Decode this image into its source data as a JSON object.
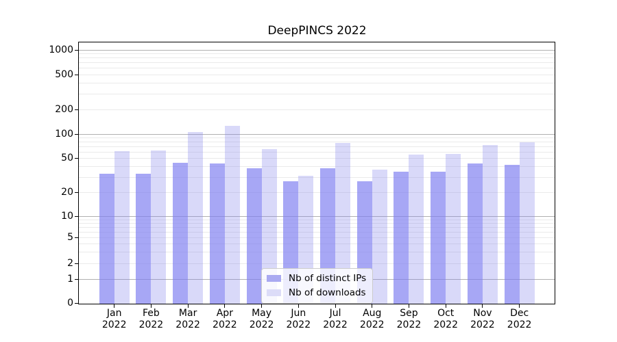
{
  "figure": {
    "background_color": "#ffffff",
    "axis_color": "#000000"
  },
  "chart_data": {
    "type": "bar",
    "title": "DeepPINCS 2022",
    "x_tick_months": [
      "Jan",
      "Feb",
      "Mar",
      "Apr",
      "May",
      "Jun",
      "Jul",
      "Aug",
      "Sep",
      "Oct",
      "Nov",
      "Dec"
    ],
    "x_tick_year": "2022",
    "series": [
      {
        "name": "Nb of distinct IPs",
        "values": [
          33,
          33,
          44,
          43,
          38,
          27,
          38,
          27,
          35,
          35,
          43,
          42
        ],
        "bar_color": "rgba(125,125,240,0.68)",
        "legend_swatch_color": "#a9a9f1"
      },
      {
        "name": "Nb of downloads",
        "values": [
          61,
          63,
          107,
          127,
          65,
          31,
          78,
          37,
          56,
          57,
          73,
          80
        ],
        "bar_color": "rgba(130,130,235,0.30)",
        "legend_swatch_color": "#dcdcf8"
      }
    ],
    "y_axis": {
      "scale": "symlog",
      "tick_values": [
        0,
        1,
        2,
        5,
        10,
        20,
        50,
        100,
        200,
        500,
        1000
      ],
      "tick_labels": [
        "0",
        "1",
        "2",
        "5",
        "10",
        "20",
        "50",
        "100",
        "200",
        "500",
        "1000"
      ],
      "ylim": [
        0,
        1400
      ]
    },
    "grid": {
      "major_values": [
        1,
        10,
        100,
        1000
      ],
      "minor_values": [
        2,
        3,
        4,
        5,
        6,
        7,
        8,
        9,
        20,
        30,
        40,
        50,
        60,
        70,
        80,
        90,
        200,
        300,
        400,
        500,
        600,
        700,
        800,
        900
      ],
      "major_color": "#b0b0b0",
      "minor_color": "#eaeaea"
    },
    "legend_location": "lower center"
  }
}
